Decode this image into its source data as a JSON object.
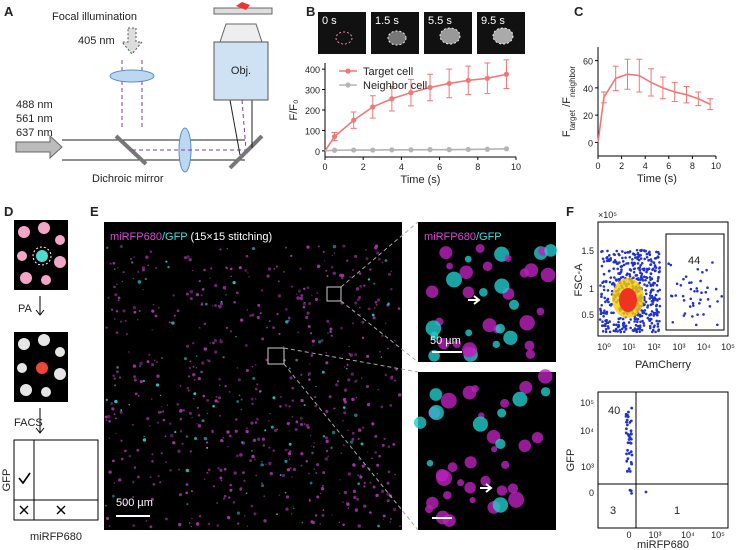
{
  "labels": [
    "A",
    "B",
    "C",
    "D",
    "E",
    "F"
  ],
  "panel_a": {
    "focal": "Focal illumination",
    "wl405": "405 nm",
    "wavelengths": [
      "488 nm",
      "561 nm",
      "637 nm"
    ],
    "mirror": "Dichroic mirror",
    "objective": "Obj."
  },
  "panel_b": {
    "frames": [
      "0 s",
      "1.5 s",
      "5.5 s",
      "9.5 s"
    ]
  },
  "chart_data": [
    {
      "type": "line",
      "xlabel": "Time (s)",
      "ylabel": "F/F₀",
      "x": [
        0,
        0.5,
        1.5,
        2.5,
        3.5,
        4.5,
        5.5,
        6.5,
        7.5,
        8.5,
        9.5
      ],
      "series": [
        {
          "name": "Target cell",
          "color": "#f07878",
          "values": [
            0,
            70,
            150,
            215,
            255,
            285,
            310,
            330,
            345,
            355,
            375
          ],
          "errors": [
            null,
            20,
            40,
            55,
            60,
            65,
            65,
            70,
            70,
            75,
            70
          ]
        },
        {
          "name": "Neighbor cell",
          "color": "#b4b4b4",
          "values": [
            0,
            3,
            4,
            4,
            5,
            5,
            6,
            6,
            7,
            8,
            10
          ]
        }
      ],
      "xlim": [
        0,
        10
      ],
      "xticks": [
        0,
        2,
        4,
        6,
        8,
        10
      ],
      "ylim": [
        -30,
        430
      ],
      "yticks": [
        0,
        100,
        200,
        300,
        400
      ],
      "markers": true,
      "legend": "upper left"
    },
    {
      "type": "line",
      "xlabel": "Time (s)",
      "ylabel": [
        "F",
        "target",
        " /F",
        "neighbor"
      ],
      "x": [
        0,
        0.5,
        1.5,
        2.5,
        3.5,
        4.5,
        5.5,
        6.5,
        7.5,
        8.5,
        9.5
      ],
      "series": [
        {
          "color": "#f07878",
          "values": [
            0,
            33,
            47,
            50,
            49,
            44,
            40,
            37,
            35,
            32,
            28
          ],
          "errors": [
            null,
            4,
            9,
            11,
            12,
            10,
            8,
            7,
            6,
            5,
            4
          ]
        }
      ],
      "xlim": [
        0,
        10
      ],
      "xticks": [
        0,
        2,
        4,
        6,
        8,
        10
      ],
      "ylim": [
        -10,
        70
      ],
      "yticks": [
        0,
        20,
        40,
        60
      ],
      "markers": false
    }
  ],
  "panel_d": {
    "step1": "PA",
    "step2": "FACS",
    "ylabel": "GFP",
    "xlabel": "miRFP680"
  },
  "panel_e": {
    "main_title": [
      "miRFP680",
      "/GFP",
      " (15×15 stitching)"
    ],
    "scale_main": "500 µm",
    "inset_title": [
      "miRFP680",
      "/GFP"
    ],
    "scale_inset": "50 µm"
  },
  "panel_f": {
    "top": {
      "multiplier": "×10⁵",
      "ylabel": "FSC-A",
      "yticks": [
        "1.5",
        "1",
        "0.5"
      ],
      "xticks": [
        "10⁰",
        "10¹",
        "10²",
        "10³",
        "10⁴",
        "10⁵"
      ],
      "xlabel": "PAmCherry",
      "gate_count": 44
    },
    "bottom": {
      "ylabel": "GFP",
      "yticks": [
        "10⁵",
        "10⁴",
        "10³",
        "0"
      ],
      "xticks": [
        "0",
        "10³",
        "10⁴",
        "10⁵"
      ],
      "xlabel": "miRFP680",
      "counts": [
        40,
        3,
        1
      ]
    }
  }
}
